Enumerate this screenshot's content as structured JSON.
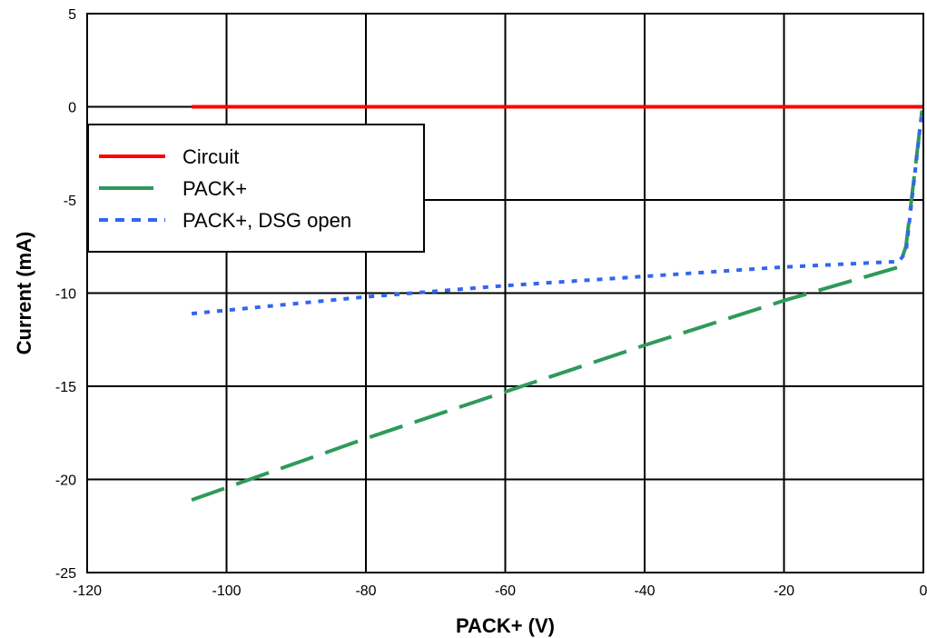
{
  "chart_data": {
    "type": "line",
    "title": "",
    "xlabel": "PACK+ (V)",
    "ylabel": "Current (mA)",
    "xlim": [
      -120,
      0
    ],
    "ylim": [
      -25,
      5
    ],
    "x_ticks": [
      -120,
      -100,
      -80,
      -60,
      -40,
      -20,
      0
    ],
    "y_ticks": [
      5,
      0,
      -5,
      -10,
      -15,
      -20,
      -25
    ],
    "x_tick_labels": [
      "-120",
      "-100",
      "-80",
      "-60",
      "-40",
      "-20",
      "0"
    ],
    "y_tick_labels": [
      "5",
      "0",
      "-5",
      "-10",
      "-15",
      "-20",
      "-25"
    ],
    "grid": true,
    "legend_position": "upper-left",
    "series": [
      {
        "name": "Circuit",
        "color": "#ff0000",
        "style": "solid",
        "x": [
          -105,
          0
        ],
        "y": [
          0,
          0
        ]
      },
      {
        "name": "PACK+",
        "color": "#2e9a5a",
        "style": "long-dash",
        "x": [
          -105,
          -80,
          -60,
          -40,
          -20,
          -3.5,
          -2.5,
          -0.2
        ],
        "y": [
          -21.1,
          -17.8,
          -15.3,
          -12.8,
          -10.4,
          -8.6,
          -7.5,
          -0.2
        ]
      },
      {
        "name": "PACK+, DSG open",
        "color": "#3366ee",
        "style": "dotted",
        "x": [
          -105,
          -80,
          -60,
          -40,
          -20,
          -3.5,
          -2.5,
          -0.2
        ],
        "y": [
          -11.1,
          -10.2,
          -9.6,
          -9.1,
          -8.6,
          -8.3,
          -7.8,
          -0.2
        ]
      }
    ]
  }
}
